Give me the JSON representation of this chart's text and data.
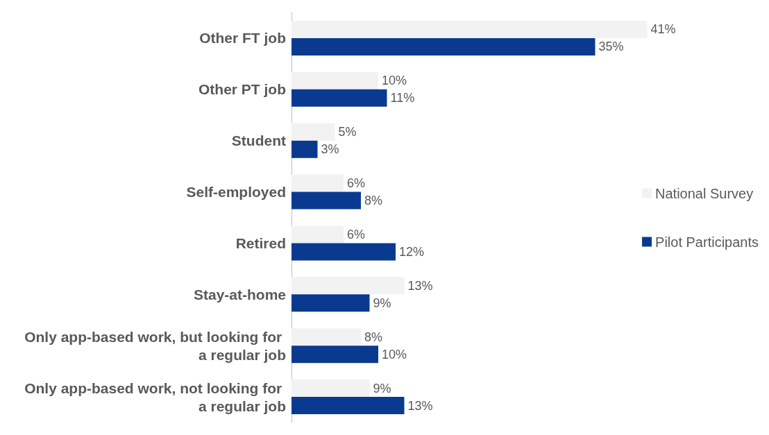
{
  "chart_data": {
    "type": "bar",
    "orientation": "horizontal",
    "categories": [
      "Other FT job",
      "Other PT job",
      "Student",
      "Self-employed",
      "Retired",
      "Stay-at-home",
      "Only app-based work, but looking for a regular job",
      "Only app-based work, not looking for a regular job"
    ],
    "series": [
      {
        "name": "National Survey",
        "color": "#f2f2f2",
        "values": [
          41,
          10,
          5,
          6,
          6,
          13,
          8,
          9
        ],
        "value_labels": [
          "41%",
          "10%",
          "5%",
          "6%",
          "6%",
          "13%",
          "8%",
          "9%"
        ]
      },
      {
        "name": "Pilot Participants",
        "color": "#0a3a8f",
        "values": [
          35,
          11,
          3,
          8,
          12,
          9,
          10,
          13
        ],
        "value_labels": [
          "35%",
          "11%",
          "3%",
          "8%",
          "12%",
          "9%",
          "10%",
          "13%"
        ]
      }
    ],
    "legend": "right"
  }
}
